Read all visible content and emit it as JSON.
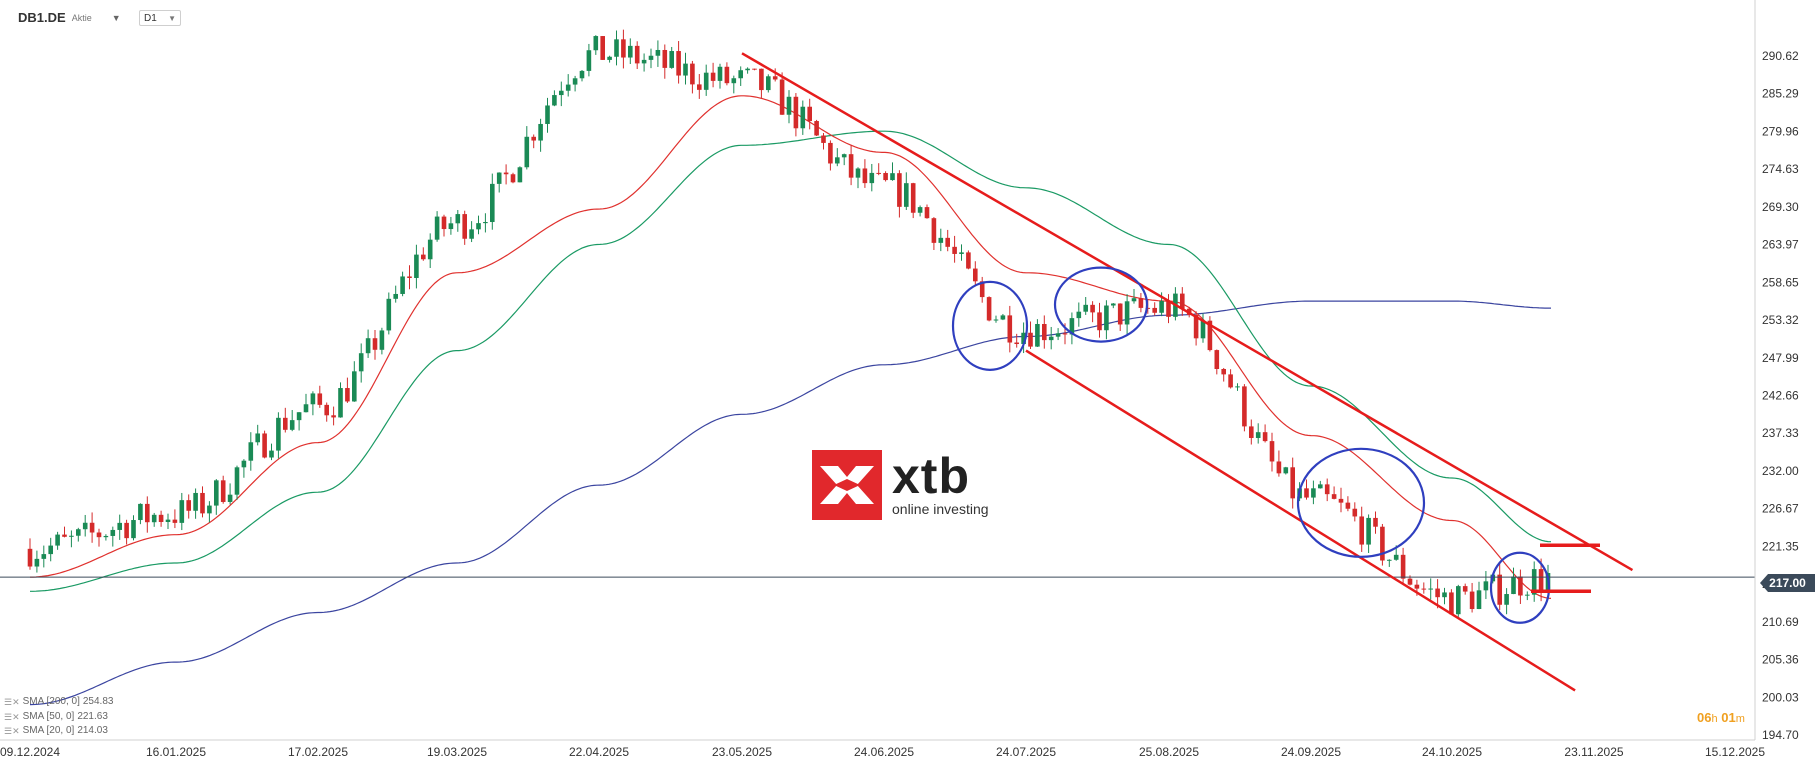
{
  "header": {
    "symbol": "DB1.DE",
    "instrument_type": "Aktie",
    "timeframe": "D1"
  },
  "indicators": [
    {
      "label": "SMA [200, 0]",
      "value": "254.83",
      "color": "#3b45a0"
    },
    {
      "label": "SMA [50, 0]",
      "value": "221.63",
      "color": "#1a9a64"
    },
    {
      "label": "SMA [20, 0]",
      "value": "214.03",
      "color": "#e0312e"
    }
  ],
  "price_tag": "217.00",
  "countdown": {
    "hours": "06",
    "h": "h",
    "minutes": "01",
    "m": "m"
  },
  "logo": {
    "brand": "xtb",
    "tagline": "online investing"
  },
  "chart_data": {
    "type": "candlestick",
    "y_ticks": [
      "290.62",
      "285.29",
      "279.96",
      "274.63",
      "269.30",
      "263.97",
      "258.65",
      "253.32",
      "247.99",
      "242.66",
      "237.33",
      "232.00",
      "226.67",
      "221.35",
      "216.02",
      "210.69",
      "205.36",
      "200.03",
      "194.70"
    ],
    "ylim": [
      194.7,
      290.62
    ],
    "x_ticks": [
      "09.12.2024",
      "16.01.2025",
      "17.02.2025",
      "19.03.2025",
      "22.04.2025",
      "23.05.2025",
      "24.06.2025",
      "24.07.2025",
      "25.08.2025",
      "24.09.2025",
      "24.10.2025",
      "23.11.2025",
      "15.12.2025"
    ],
    "current_price": 217.0,
    "colors": {
      "up": "#1a8a55",
      "down": "#d42a2a",
      "sma200": "#3b45a0",
      "sma50": "#1a9a64",
      "sma20": "#e0312e",
      "trend": "#e61c1c",
      "circle": "#2f3fbf",
      "price_line": "#3b4a5a"
    },
    "price_path": [
      [
        "09.12.2024",
        221
      ],
      [
        "16.01.2025",
        226
      ],
      [
        "17.02.2025",
        241
      ],
      [
        "19.03.2025",
        267
      ],
      [
        "22.04.2025",
        291
      ],
      [
        "23.05.2025",
        287
      ],
      [
        "24.06.2025",
        272
      ],
      [
        "24.07.2025",
        252
      ],
      [
        "25.08.2025",
        255
      ],
      [
        "24.09.2025",
        228
      ],
      [
        "24.10.2025",
        214
      ],
      [
        "14.11.2025",
        217
      ]
    ],
    "sma20": [
      [
        "09.12.2024",
        217
      ],
      [
        "16.01.2025",
        223
      ],
      [
        "17.02.2025",
        236
      ],
      [
        "19.03.2025",
        260
      ],
      [
        "22.04.2025",
        269
      ],
      [
        "23.05.2025",
        285
      ],
      [
        "24.06.2025",
        277
      ],
      [
        "24.07.2025",
        260
      ],
      [
        "25.08.2025",
        256
      ],
      [
        "24.09.2025",
        237
      ],
      [
        "24.10.2025",
        225
      ],
      [
        "14.11.2025",
        214
      ]
    ],
    "sma50": [
      [
        "09.12.2024",
        215
      ],
      [
        "16.01.2025",
        219
      ],
      [
        "17.02.2025",
        229
      ],
      [
        "19.03.2025",
        249
      ],
      [
        "22.04.2025",
        264
      ],
      [
        "23.05.2025",
        278
      ],
      [
        "24.06.2025",
        280
      ],
      [
        "24.07.2025",
        272
      ],
      [
        "25.08.2025",
        264
      ],
      [
        "24.09.2025",
        244
      ],
      [
        "24.10.2025",
        231
      ],
      [
        "14.11.2025",
        222
      ]
    ],
    "sma200": [
      [
        "09.12.2024",
        199
      ],
      [
        "16.01.2025",
        205
      ],
      [
        "17.02.2025",
        212
      ],
      [
        "19.03.2025",
        219
      ],
      [
        "22.04.2025",
        230
      ],
      [
        "23.05.2025",
        240
      ],
      [
        "24.06.2025",
        247
      ],
      [
        "24.07.2025",
        251
      ],
      [
        "25.08.2025",
        254
      ],
      [
        "24.09.2025",
        256
      ],
      [
        "24.10.2025",
        256
      ],
      [
        "14.11.2025",
        255
      ]
    ],
    "annotations": {
      "upper_trendline": [
        [
          "23.05.2025",
          291
        ],
        [
          "29.11.2025",
          218
        ]
      ],
      "lower_trendline": [
        [
          "24.07.2025",
          249
        ],
        [
          "19.11.2025",
          201
        ]
      ],
      "circles": [
        "24.07.2025",
        "25.08.2025",
        "24.09.2025",
        "14.11.2025"
      ],
      "resistance_marks": [
        221.5,
        215
      ]
    }
  }
}
